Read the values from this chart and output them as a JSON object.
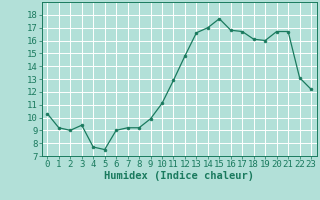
{
  "x": [
    0,
    1,
    2,
    3,
    4,
    5,
    6,
    7,
    8,
    9,
    10,
    11,
    12,
    13,
    14,
    15,
    16,
    17,
    18,
    19,
    20,
    21,
    22,
    23
  ],
  "y": [
    10.3,
    9.2,
    9.0,
    9.4,
    7.7,
    7.5,
    9.0,
    9.2,
    9.2,
    9.9,
    11.1,
    12.9,
    14.8,
    16.6,
    17.0,
    17.7,
    16.8,
    16.7,
    16.1,
    16.0,
    16.7,
    16.7,
    13.1,
    12.2
  ],
  "xlim": [
    -0.5,
    23.5
  ],
  "ylim": [
    7,
    19
  ],
  "yticks": [
    7,
    8,
    9,
    10,
    11,
    12,
    13,
    14,
    15,
    16,
    17,
    18
  ],
  "xticks": [
    0,
    1,
    2,
    3,
    4,
    5,
    6,
    7,
    8,
    9,
    10,
    11,
    12,
    13,
    14,
    15,
    16,
    17,
    18,
    19,
    20,
    21,
    22,
    23
  ],
  "xlabel": "Humidex (Indice chaleur)",
  "line_color": "#1a7a5e",
  "marker_size": 2.0,
  "bg_color": "#b2e0d8",
  "grid_color": "#ffffff",
  "tick_color": "#1a7a5e",
  "label_fontsize": 6.5,
  "xlabel_fontsize": 7.5
}
